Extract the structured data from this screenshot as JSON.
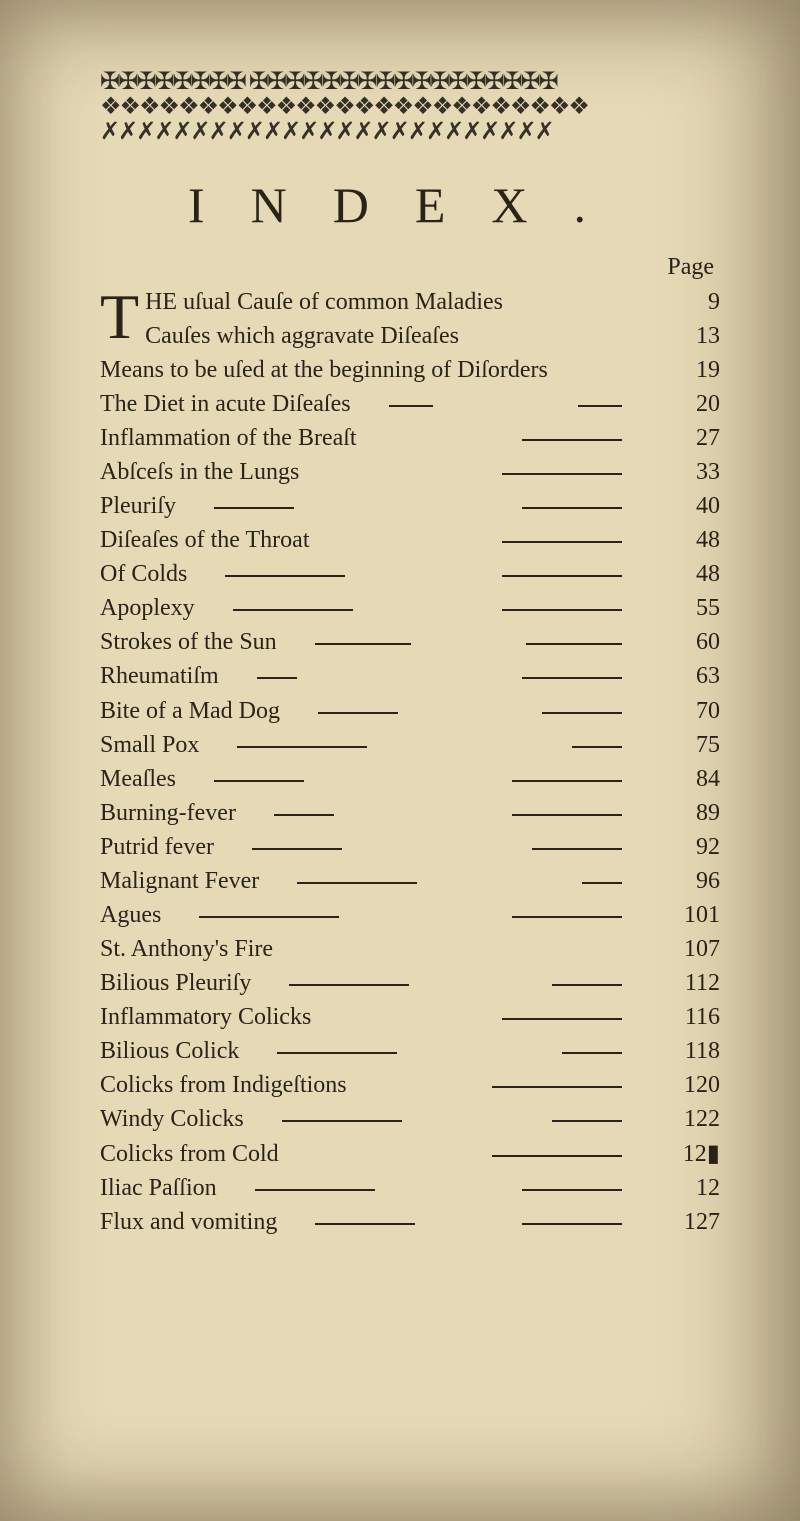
{
  "ornament_lines": [
    "✠✠✠✠✠✠✠✠ ✠✠✠✠✠✠✠✠✠✠✠✠✠✠✠✠✠",
    "❖❖❖❖❖❖❖❖❖❖❖❖❖❖❖❖❖❖❖❖❖❖❖❖❖",
    "✗✗✗✗✗✗✗✗✗✗✗✗✗✗✗✗✗✗✗✗✗✗✗✗✗"
  ],
  "title": "INDEX.",
  "page_label": "Page",
  "dropcap": "T",
  "entries": [
    {
      "text": "HE uſual Cauſe of common Maladies",
      "page": "9",
      "dash1": 0,
      "dash2": 0
    },
    {
      "text": "Cauſes which aggravate Diſeaſes",
      "page": "13",
      "dash1": 0,
      "dash2": 0
    },
    {
      "text": "Means to be uſed at the beginning of Diſorders",
      "page": "19",
      "dash1": 0,
      "dash2": 0
    },
    {
      "text": "The Diet in acute Diſeaſes",
      "page": "20",
      "dash1": 44,
      "dash2": 44
    },
    {
      "text": "Inflammation of the Breaſt",
      "page": "27",
      "dash1": 0,
      "dash2": 100
    },
    {
      "text": "Abſceſs in the Lungs",
      "page": "33",
      "dash1": 0,
      "dash2": 120
    },
    {
      "text": "Pleuriſy",
      "page": "40",
      "dash1": 80,
      "dash2": 100
    },
    {
      "text": "Diſeaſes of the Throat",
      "page": "48",
      "dash1": 0,
      "dash2": 120
    },
    {
      "text": "Of Colds",
      "page": "48",
      "dash1": 120,
      "dash2": 120
    },
    {
      "text": "Apoplexy",
      "page": "55",
      "dash1": 120,
      "dash2": 120
    },
    {
      "text": "Strokes of the Sun",
      "page": "60",
      "dash1": 96,
      "dash2": 96
    },
    {
      "text": "Rheumatiſm",
      "page": "63",
      "dash1": 40,
      "dash2": 100
    },
    {
      "text": "Bite of a Mad Dog",
      "page": "70",
      "dash1": 80,
      "dash2": 80
    },
    {
      "text": "Small Pox",
      "page": "75",
      "dash1": 130,
      "dash2": 50
    },
    {
      "text": "Meaſles",
      "page": "84",
      "dash1": 90,
      "dash2": 110
    },
    {
      "text": "Burning-fever",
      "page": "89",
      "dash1": 60,
      "dash2": 110
    },
    {
      "text": "Putrid fever",
      "page": "92",
      "dash1": 90,
      "dash2": 90
    },
    {
      "text": "Malignant Fever",
      "page": "96",
      "dash1": 120,
      "dash2": 40
    },
    {
      "text": "Agues",
      "page": "101",
      "dash1": 140,
      "dash2": 110
    },
    {
      "text": "St. Anthony's Fire",
      "page": "107",
      "dash1": 0,
      "dash2": 0
    },
    {
      "text": "Bilious Pleuriſy",
      "page": "112",
      "dash1": 120,
      "dash2": 70
    },
    {
      "text": "Inflammatory Colicks",
      "page": "116",
      "dash1": 0,
      "dash2": 120
    },
    {
      "text": "Bilious Colick",
      "page": "118",
      "dash1": 120,
      "dash2": 60
    },
    {
      "text": "Colicks from Indigeſtions",
      "page": "120",
      "dash1": 0,
      "dash2": 130
    },
    {
      "text": "Windy Colicks",
      "page": "122",
      "dash1": 120,
      "dash2": 70
    },
    {
      "text": "Colicks from Cold",
      "page": "12▮",
      "dash1": 0,
      "dash2": 130
    },
    {
      "text": "Iliac Paſſion",
      "page": "12",
      "dash1": 120,
      "dash2": 100
    },
    {
      "text": "Flux and vomiting",
      "page": "127",
      "dash1": 100,
      "dash2": 100
    }
  ],
  "colors": {
    "paper": "#e6d9b5",
    "ink": "#2a231a"
  }
}
